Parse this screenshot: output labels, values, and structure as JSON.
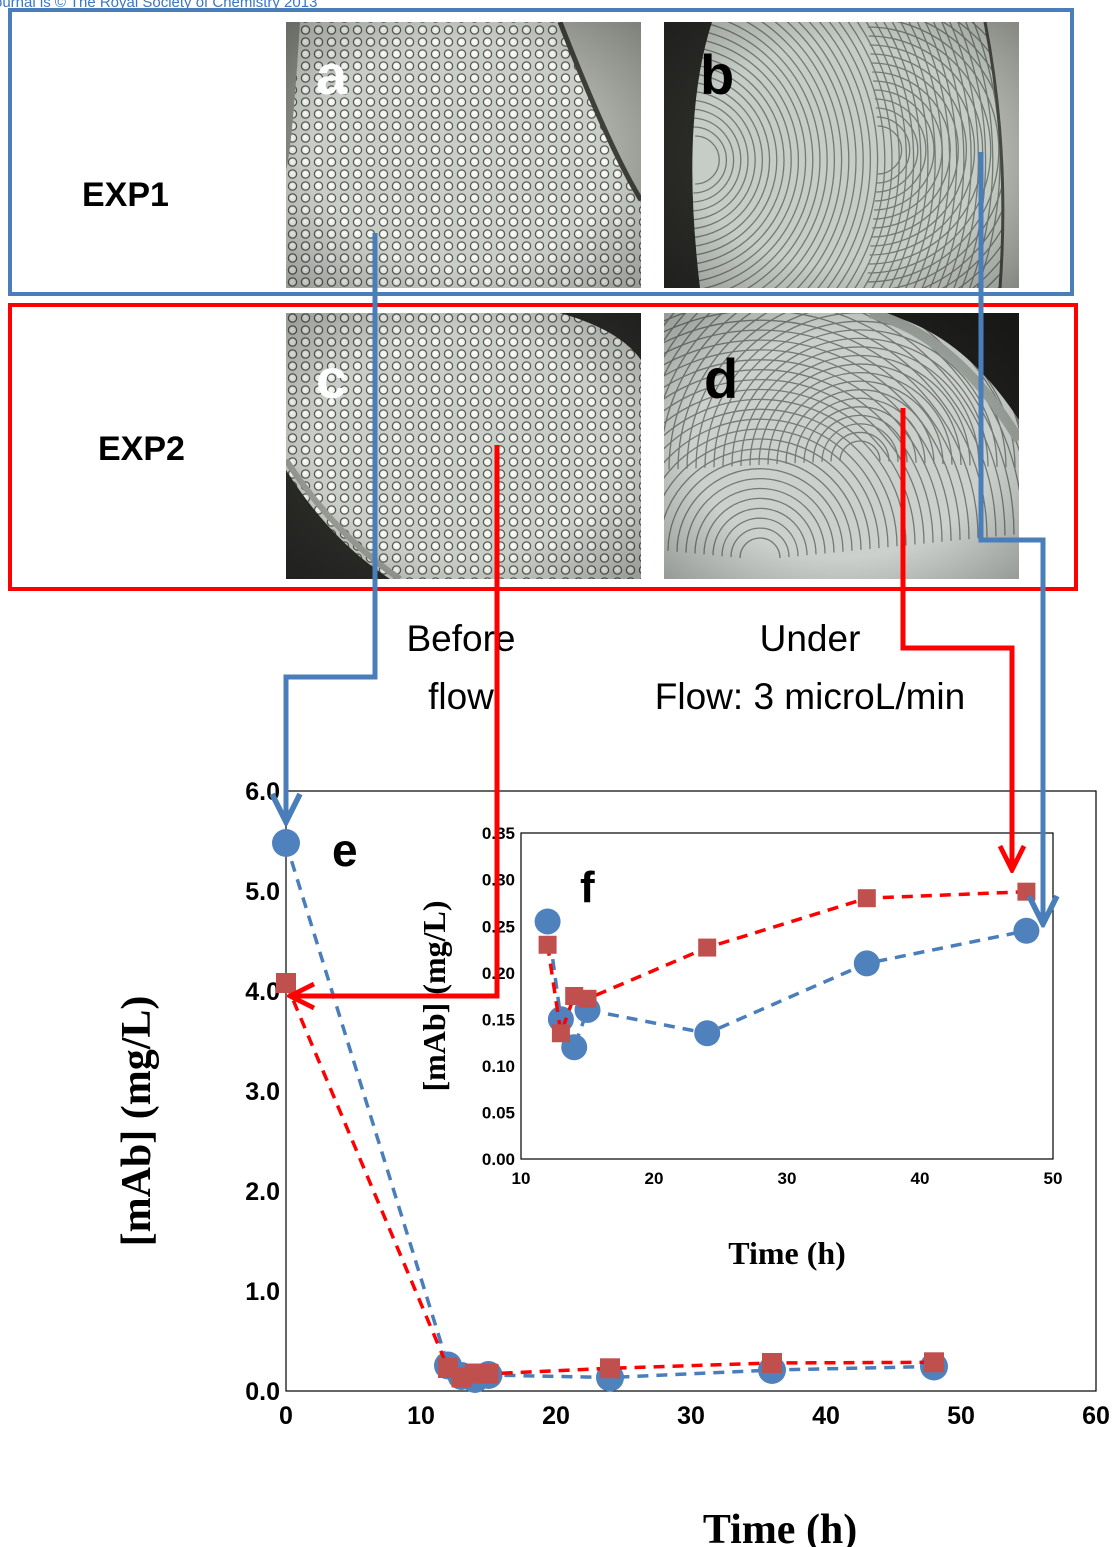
{
  "header_text": "ournal is © The Royal Society of Chemistry 2013",
  "rows": [
    {
      "label": "EXP1",
      "color": "#4a7ebb"
    },
    {
      "label": "EXP2",
      "color": "#ff0000"
    }
  ],
  "panels": [
    {
      "letter": "a",
      "kind": "cells"
    },
    {
      "letter": "b",
      "kind": "arcs"
    },
    {
      "letter": "c",
      "kind": "cells"
    },
    {
      "letter": "d",
      "kind": "arcs"
    }
  ],
  "captions": {
    "before": [
      "Before",
      "flow"
    ],
    "under": [
      "Under",
      "Flow: 3 microL/min"
    ]
  },
  "colors": {
    "series1": "#4f81bd",
    "series2": "#c0504d",
    "arrow_blue": "#4a7ebb",
    "arrow_red": "#ff0000"
  },
  "chart_data": [
    {
      "type": "scatter",
      "panel_label": "e",
      "xlabel": "Time (h)",
      "ylabel": "[mAb] (mg/L)",
      "xlim": [
        0,
        60
      ],
      "ylim": [
        0,
        6
      ],
      "xticks": [
        "0",
        "10",
        "20",
        "30",
        "40",
        "50",
        "60"
      ],
      "yticks": [
        "0.0",
        "1.0",
        "2.0",
        "3.0",
        "4.0",
        "5.0",
        "6.0"
      ],
      "series": [
        {
          "marker": "circle",
          "color": "#4f81bd",
          "line": "dashed",
          "x": [
            0,
            12,
            13,
            14,
            15,
            24,
            36,
            48
          ],
          "y": [
            5.48,
            0.255,
            0.15,
            0.12,
            0.16,
            0.135,
            0.21,
            0.245
          ]
        },
        {
          "marker": "square",
          "color": "#c0504d",
          "line": "dashed",
          "x": [
            0,
            12,
            13,
            14,
            15,
            24,
            36,
            48
          ],
          "y": [
            4.08,
            0.23,
            0.135,
            0.175,
            0.172,
            0.227,
            0.28,
            0.287
          ]
        }
      ]
    },
    {
      "type": "scatter",
      "panel_label": "f",
      "xlabel": "Time (h)",
      "ylabel": "[mAb] (mg/L)",
      "xlim": [
        10,
        50
      ],
      "ylim": [
        0,
        0.35
      ],
      "xticks": [
        "10",
        "20",
        "30",
        "40",
        "50"
      ],
      "yticks": [
        "0.00",
        "0.05",
        "0.10",
        "0.15",
        "0.20",
        "0.25",
        "0.30",
        "0.35"
      ],
      "series": [
        {
          "marker": "circle",
          "color": "#4f81bd",
          "line": "dashed",
          "x": [
            12,
            13,
            14,
            15,
            24,
            36,
            48
          ],
          "y": [
            0.255,
            0.15,
            0.12,
            0.16,
            0.135,
            0.21,
            0.245
          ]
        },
        {
          "marker": "square",
          "color": "#c0504d",
          "line": "dashed",
          "x": [
            12,
            13,
            14,
            15,
            24,
            36,
            48
          ],
          "y": [
            0.23,
            0.135,
            0.175,
            0.172,
            0.227,
            0.28,
            0.287
          ]
        }
      ]
    }
  ]
}
